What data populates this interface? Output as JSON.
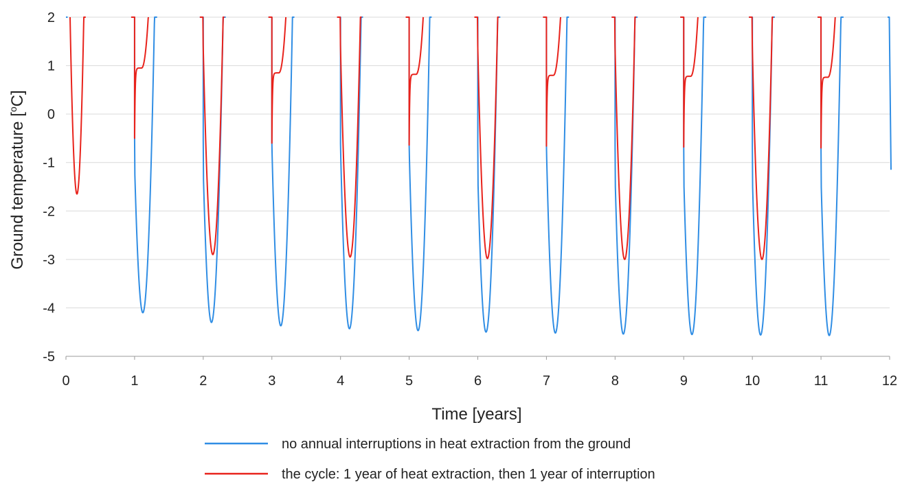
{
  "chart_data": {
    "type": "line",
    "title": "",
    "xlabel": "Time [years]",
    "ylabel": "Ground temperature [",
    "ylabel_sup": "o",
    "ylabel_unit": "C]",
    "xlim": [
      0,
      12
    ],
    "ylim": [
      -5,
      2
    ],
    "x_ticks": [
      0,
      1,
      2,
      3,
      4,
      5,
      6,
      7,
      8,
      9,
      10,
      11,
      12
    ],
    "x_tick_labels": [
      "0",
      "1",
      "2",
      "3",
      "4",
      "5",
      "6",
      "7",
      "8",
      "9",
      "10",
      "11",
      "12"
    ],
    "y_ticks": [
      2,
      1,
      0,
      -1,
      -2,
      -3,
      -4,
      -5
    ],
    "y_tick_labels": [
      "2",
      "1",
      "0",
      "-1",
      "-2",
      "-3",
      "-4",
      "-5"
    ],
    "grid": true,
    "legend_position": "bottom",
    "series": [
      {
        "name": "no annual interruptions in heat extraction from the ground",
        "color": "#2f8de4",
        "minima_years": [
          1.12,
          2.12,
          3.13,
          4.13,
          5.13,
          6.12,
          7.13,
          8.12,
          9.12,
          10.12,
          11.12
        ],
        "minima_values": [
          -4.1,
          -4.3,
          -4.37,
          -4.43,
          -4.47,
          -4.5,
          -4.52,
          -4.54,
          -4.55,
          -4.56,
          -4.57
        ],
        "jump_values": [
          -0.5,
          -0.55,
          -0.6,
          -0.62,
          -0.64,
          -0.65,
          -0.66,
          -0.67,
          -0.68,
          -0.69,
          -0.7
        ],
        "end_point": [
          12.02,
          -1.15
        ]
      },
      {
        "name": "the cycle: 1 year of heat extraction, then 1 year of interruption",
        "color": "#e8221b",
        "minima_years": [
          0.16,
          2.14,
          4.14,
          6.14,
          8.14,
          10.14
        ],
        "minima_values": [
          -1.65,
          -2.9,
          -2.95,
          -2.98,
          -3.0,
          -3.0
        ],
        "jump_years": [
          1,
          3,
          5,
          7,
          9,
          11
        ],
        "jump_values": [
          -0.5,
          -0.6,
          -0.64,
          -0.66,
          -0.68,
          -0.7
        ],
        "plateau_values": [
          0.95,
          0.85,
          0.82,
          0.8,
          0.78,
          0.76
        ]
      }
    ]
  }
}
